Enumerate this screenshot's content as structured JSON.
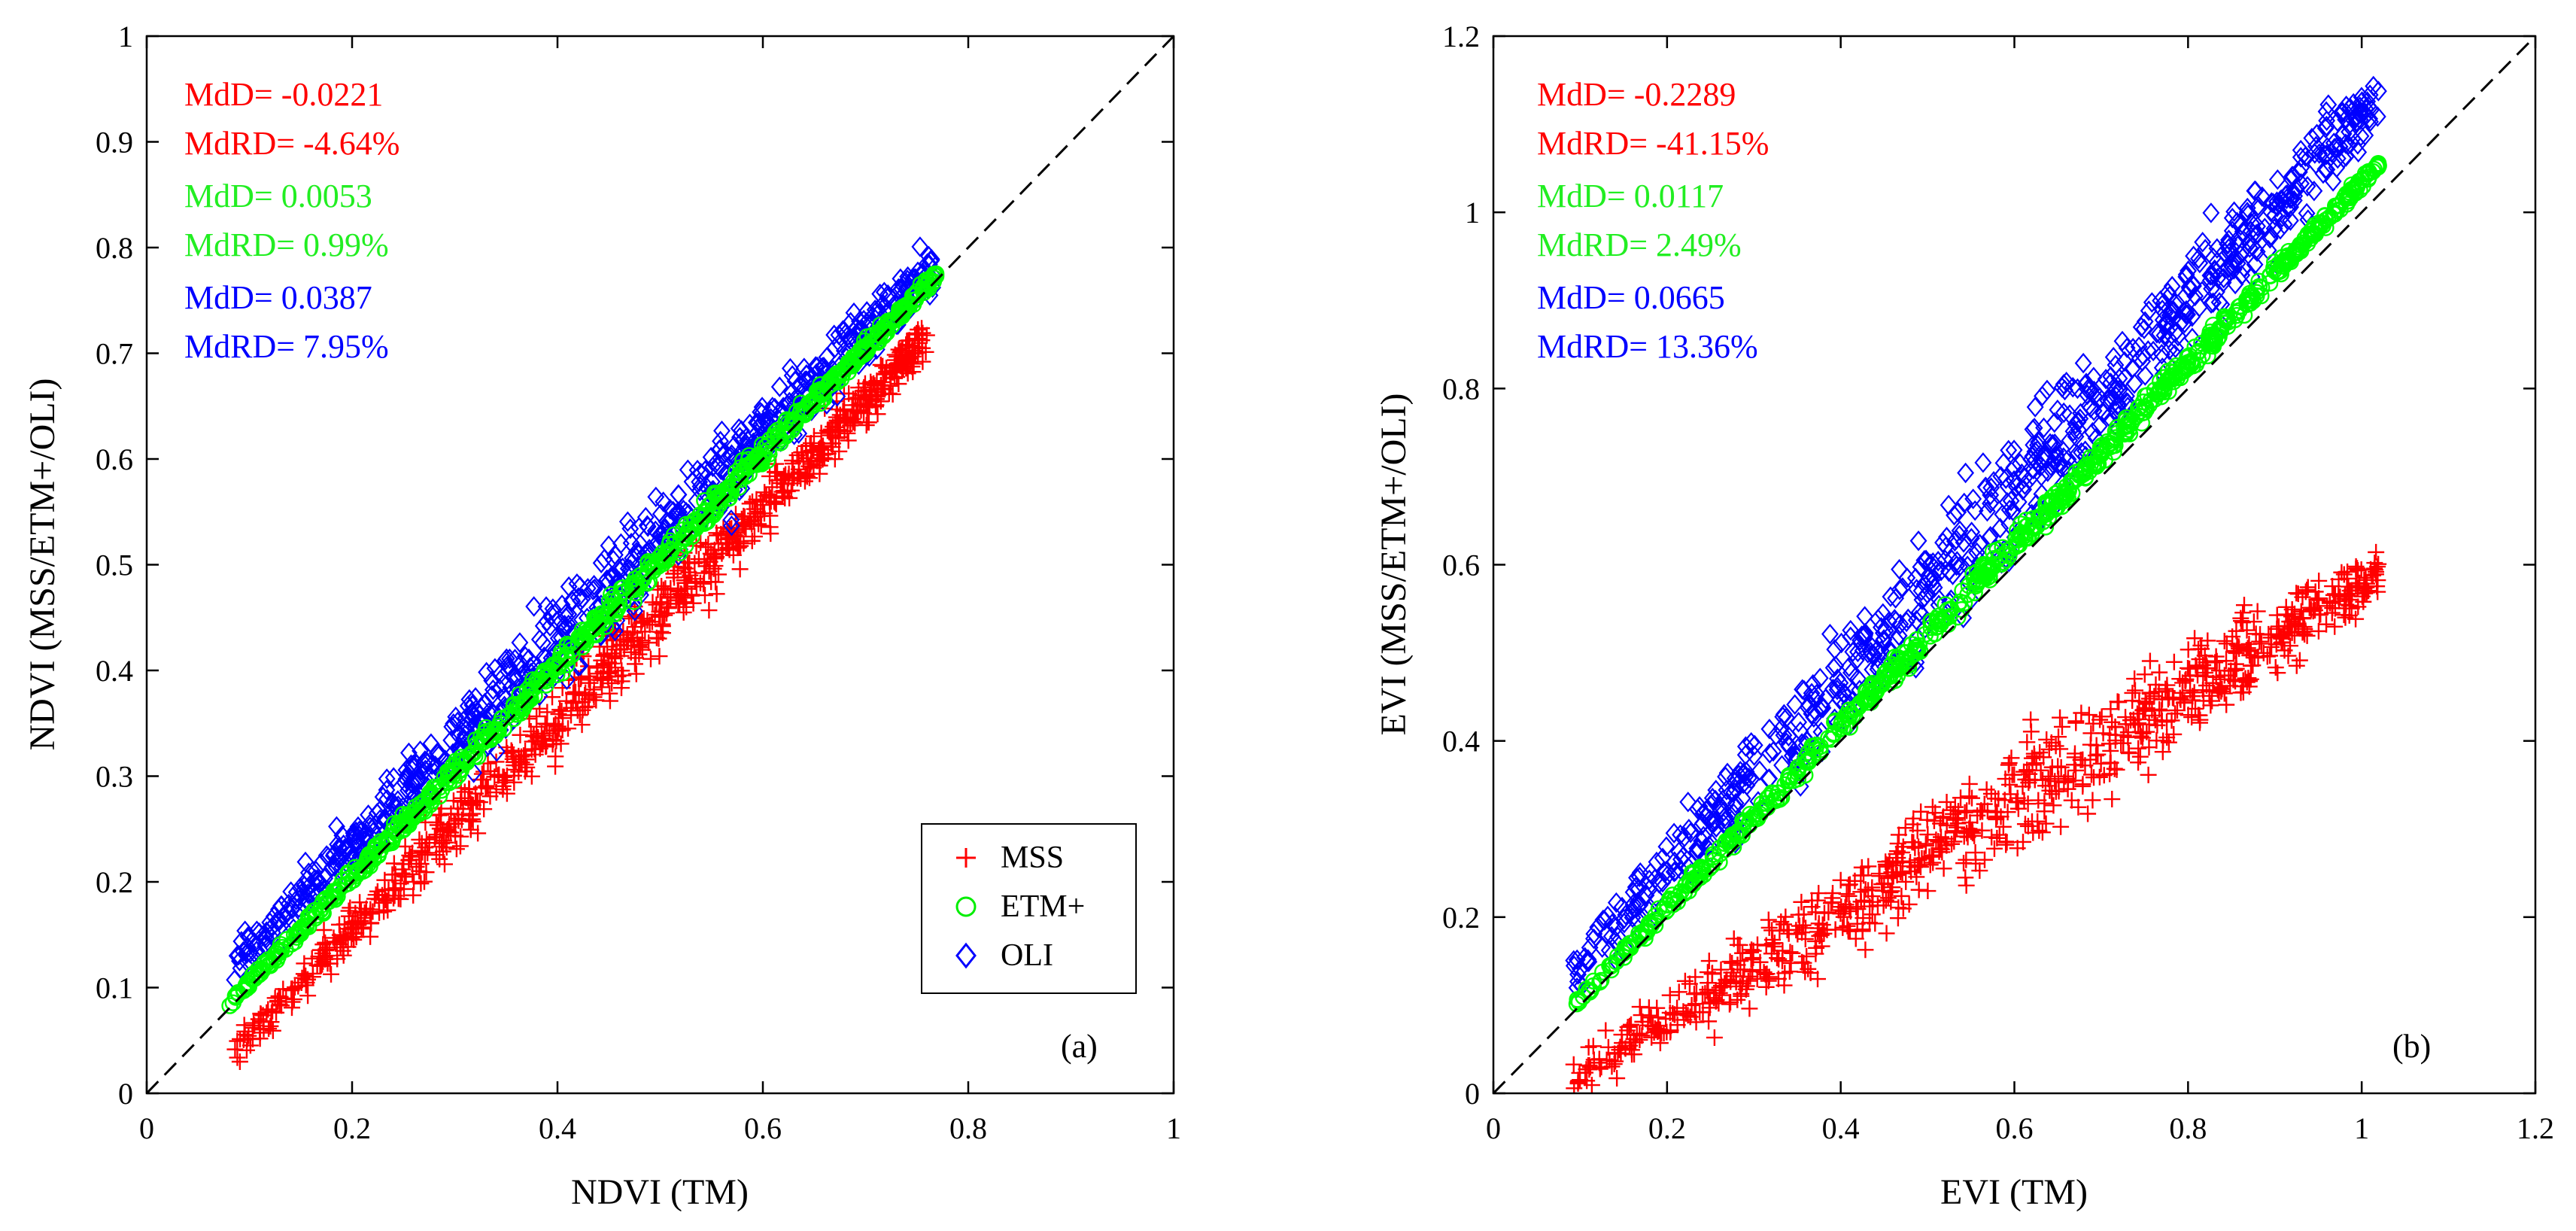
{
  "chart_data": [
    {
      "type": "scatter",
      "panel_label": "(a)",
      "xlabel": "NDVI (TM)",
      "ylabel": "NDVI (MSS/ETM+/OLI)",
      "xlim": [
        0,
        1
      ],
      "ylim": [
        0,
        1
      ],
      "xticks": [
        "0",
        "0.2",
        "0.4",
        "0.6",
        "0.8",
        "1"
      ],
      "yticks": [
        "0",
        "0.1",
        "0.2",
        "0.3",
        "0.4",
        "0.5",
        "0.6",
        "0.7",
        "0.8",
        "0.9",
        "1"
      ],
      "xtick_values": [
        0,
        0.2,
        0.4,
        0.6,
        0.8,
        1
      ],
      "ytick_values": [
        0,
        0.1,
        0.2,
        0.3,
        0.4,
        0.5,
        0.6,
        0.7,
        0.8,
        0.9,
        1
      ],
      "reference_line": "1:1",
      "legend": {
        "location": "bottom-right",
        "entries": [
          "MSS",
          "ETM+",
          "OLI"
        ]
      },
      "annotations": [
        {
          "text": "MdD= -0.0221",
          "series": "MSS"
        },
        {
          "text": "MdRD= -4.64%",
          "series": "MSS"
        },
        {
          "text": "MdD= 0.0053",
          "series": "ETM+"
        },
        {
          "text": "MdRD= 0.99%",
          "series": "ETM+"
        },
        {
          "text": "MdD= 0.0387",
          "series": "OLI"
        },
        {
          "text": "MdRD= 7.95%",
          "series": "OLI"
        }
      ],
      "series": [
        {
          "name": "MSS",
          "marker": "+",
          "color": "#ff0000",
          "x_range": [
            0.08,
            0.76
          ],
          "slope": 1.0,
          "intercept": -0.045,
          "spread": 0.035
        },
        {
          "name": "ETM+",
          "marker": "o",
          "color": "#00ff00",
          "x_range": [
            0.08,
            0.77
          ],
          "slope": 1.0,
          "intercept": 0.005,
          "spread": 0.012
        },
        {
          "name": "OLI",
          "marker": "diamond",
          "color": "#0000ff",
          "x_range": [
            0.08,
            0.77
          ],
          "slope": 0.97,
          "intercept": 0.04,
          "spread": 0.045
        }
      ]
    },
    {
      "type": "scatter",
      "panel_label": "(b)",
      "xlabel": "EVI (TM)",
      "ylabel": "EVI (MSS/ETM+/OLI)",
      "xlim": [
        0,
        1.2
      ],
      "ylim": [
        0,
        1.2
      ],
      "xticks": [
        "0",
        "0.2",
        "0.4",
        "0.6",
        "0.8",
        "1",
        "1.2"
      ],
      "yticks": [
        "0",
        "0.2",
        "0.4",
        "0.6",
        "0.8",
        "1",
        "1.2"
      ],
      "xtick_values": [
        0,
        0.2,
        0.4,
        0.6,
        0.8,
        1,
        1.2
      ],
      "ytick_values": [
        0,
        0.2,
        0.4,
        0.6,
        0.8,
        1,
        1.2
      ],
      "reference_line": "1:1",
      "annotations": [
        {
          "text": "MdD= -0.2289",
          "series": "MSS"
        },
        {
          "text": "MdRD= -41.15%",
          "series": "MSS"
        },
        {
          "text": "MdD= 0.0117",
          "series": "ETM+"
        },
        {
          "text": "MdRD= 2.49%",
          "series": "ETM+"
        },
        {
          "text": "MdD= 0.0665",
          "series": "OLI"
        },
        {
          "text": "MdRD= 13.36%",
          "series": "OLI"
        }
      ],
      "series": [
        {
          "name": "MSS",
          "marker": "+",
          "color": "#ff0000",
          "x_range": [
            0.09,
            1.02
          ],
          "slope": 0.62,
          "intercept": -0.04,
          "spread": 0.06
        },
        {
          "name": "ETM+",
          "marker": "o",
          "color": "#00ff00",
          "x_range": [
            0.09,
            1.02
          ],
          "slope": 1.03,
          "intercept": 0.005,
          "spread": 0.015
        },
        {
          "name": "OLI",
          "marker": "diamond",
          "color": "#0000ff",
          "x_range": [
            0.09,
            1.02
          ],
          "slope": 1.07,
          "intercept": 0.04,
          "spread": 0.07
        }
      ]
    }
  ]
}
